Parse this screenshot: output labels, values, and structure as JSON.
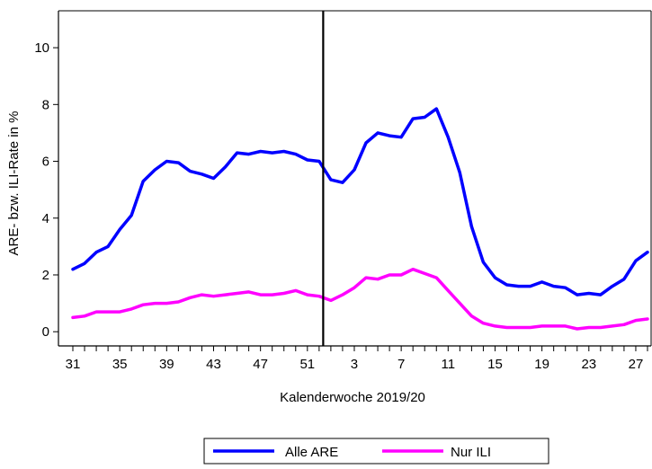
{
  "chart_data": {
    "type": "line",
    "xlabel": "Kalenderwoche 2019/20",
    "ylabel": "ARE- bzw. ILI-Rate in %",
    "ylim": [
      -0.5,
      11.3
    ],
    "yticks": [
      0,
      2,
      4,
      6,
      8,
      10
    ],
    "x_ticks": [
      31,
      35,
      39,
      43,
      47,
      51,
      3,
      7,
      11,
      15,
      19,
      23,
      27
    ],
    "x_weeks": [
      31,
      32,
      33,
      34,
      35,
      36,
      37,
      38,
      39,
      40,
      41,
      42,
      43,
      44,
      45,
      46,
      47,
      48,
      49,
      50,
      51,
      52,
      1,
      2,
      3,
      4,
      5,
      6,
      7,
      8,
      9,
      10,
      11,
      12,
      13,
      14,
      15,
      16,
      17,
      18,
      19,
      20,
      21,
      22,
      23,
      24,
      25,
      26,
      27,
      28
    ],
    "year_boundary_after_week": 52,
    "legend_position": "bottom",
    "grid": false,
    "series": [
      {
        "name": "Alle ARE",
        "color": "#0000ff",
        "values": [
          2.2,
          2.4,
          2.8,
          3.0,
          3.6,
          4.1,
          5.3,
          5.7,
          6.0,
          5.95,
          5.65,
          5.55,
          5.4,
          5.8,
          6.3,
          6.25,
          6.35,
          6.3,
          6.35,
          6.25,
          6.05,
          6.0,
          5.35,
          5.25,
          5.7,
          6.65,
          7.0,
          6.9,
          6.85,
          7.5,
          7.55,
          7.85,
          6.85,
          5.6,
          3.7,
          2.45,
          1.9,
          1.65,
          1.6,
          1.6,
          1.75,
          1.6,
          1.55,
          1.3,
          1.35,
          1.3,
          1.6,
          1.85,
          2.5,
          2.8
        ]
      },
      {
        "name": "Nur ILI",
        "color": "#ff00ff",
        "values": [
          0.5,
          0.55,
          0.7,
          0.7,
          0.7,
          0.8,
          0.95,
          1.0,
          1.0,
          1.05,
          1.2,
          1.3,
          1.25,
          1.3,
          1.35,
          1.4,
          1.3,
          1.3,
          1.35,
          1.45,
          1.3,
          1.25,
          1.1,
          1.3,
          1.55,
          1.9,
          1.85,
          2.0,
          2.0,
          2.2,
          2.05,
          1.9,
          1.45,
          1.0,
          0.55,
          0.3,
          0.2,
          0.15,
          0.15,
          0.15,
          0.2,
          0.2,
          0.2,
          0.1,
          0.15,
          0.15,
          0.2,
          0.25,
          0.4,
          0.45
        ]
      }
    ]
  }
}
